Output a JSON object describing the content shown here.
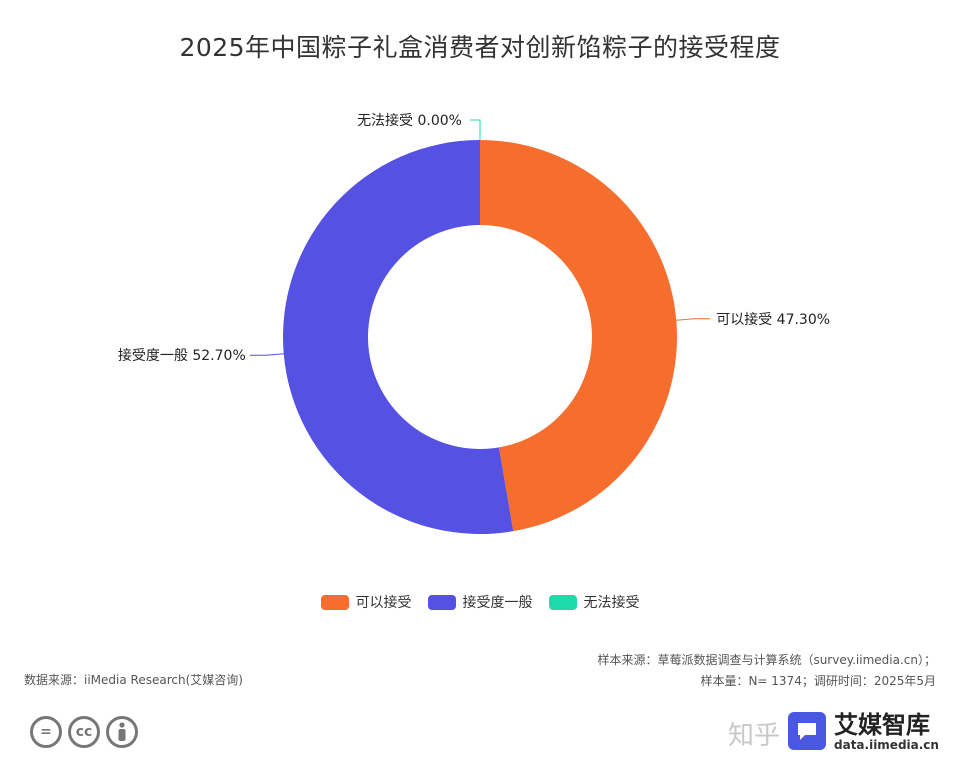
{
  "chart_data": {
    "type": "pie",
    "variant": "donut",
    "title": "2025年中国粽子礼盒消费者对创新馅粽子的接受程度",
    "labels": [
      "可以接受",
      "接受度一般",
      "无法接受"
    ],
    "values": [
      47.3,
      52.7,
      0.0
    ],
    "value_labels": [
      "47.30%",
      "52.70%",
      "0.00%"
    ],
    "colors": [
      "#f56e2e",
      "#5451e3",
      "#1ddcaa"
    ],
    "legend_position": "bottom"
  },
  "legend": [
    {
      "label": "可以接受",
      "color": "#f56e2e"
    },
    {
      "label": "接受度一般",
      "color": "#5451e3"
    },
    {
      "label": "无法接受",
      "color": "#1ddcaa"
    }
  ],
  "footer": {
    "source": "数据来源：iiMedia Research(艾媒咨询)",
    "sample_source": "样本来源：草莓派数据调查与计算系统（survey.iimedia.cn）；",
    "sample_size": "样本量：N= 1374；调研时间：2025年5月"
  },
  "watermark": {
    "zhihu": "知乎",
    "brand_name": "艾媒智库",
    "brand_url": "data.iimedia.cn"
  }
}
